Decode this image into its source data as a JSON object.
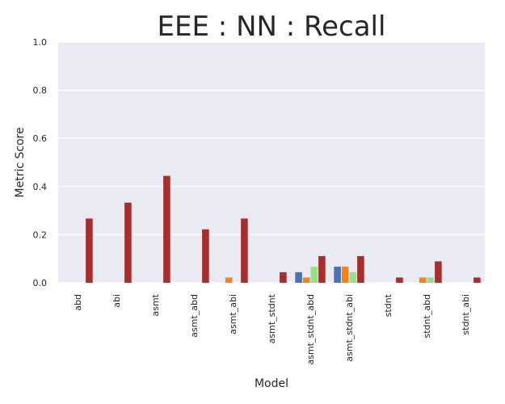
{
  "chart_data": {
    "type": "bar",
    "title": "EEE : NN : Recall",
    "xlabel": "Model",
    "ylabel": "Metric Score",
    "ylim": [
      0,
      1.0
    ],
    "yticks": [
      "0.0",
      "0.2",
      "0.4",
      "0.6",
      "0.8",
      "1.0"
    ],
    "grid": true,
    "categories": [
      "abd",
      "abi",
      "asmt",
      "asmt_abd",
      "asmt_abi",
      "asmt_stdnt",
      "asmt_stdnt_abd",
      "asmt_stdnt_abi",
      "stdnt",
      "stdnt_abd",
      "stdnt_abi"
    ],
    "series": [
      {
        "color": "#4c72b0",
        "values": [
          0,
          0,
          0,
          0,
          0,
          0,
          0.044,
          0.067,
          0,
          0,
          0
        ]
      },
      {
        "color": "#ee8422",
        "values": [
          0,
          0,
          0,
          0,
          0.022,
          0,
          0.022,
          0.067,
          0,
          0.022,
          0
        ]
      },
      {
        "color": "#99df8a",
        "values": [
          0,
          0,
          0,
          0,
          0,
          0,
          0.067,
          0.044,
          0,
          0.022,
          0
        ]
      },
      {
        "color": "#a3302f",
        "values": [
          0.267,
          0.333,
          0.444,
          0.222,
          0.267,
          0.044,
          0.111,
          0.111,
          0.022,
          0.089,
          0.022
        ]
      }
    ]
  }
}
